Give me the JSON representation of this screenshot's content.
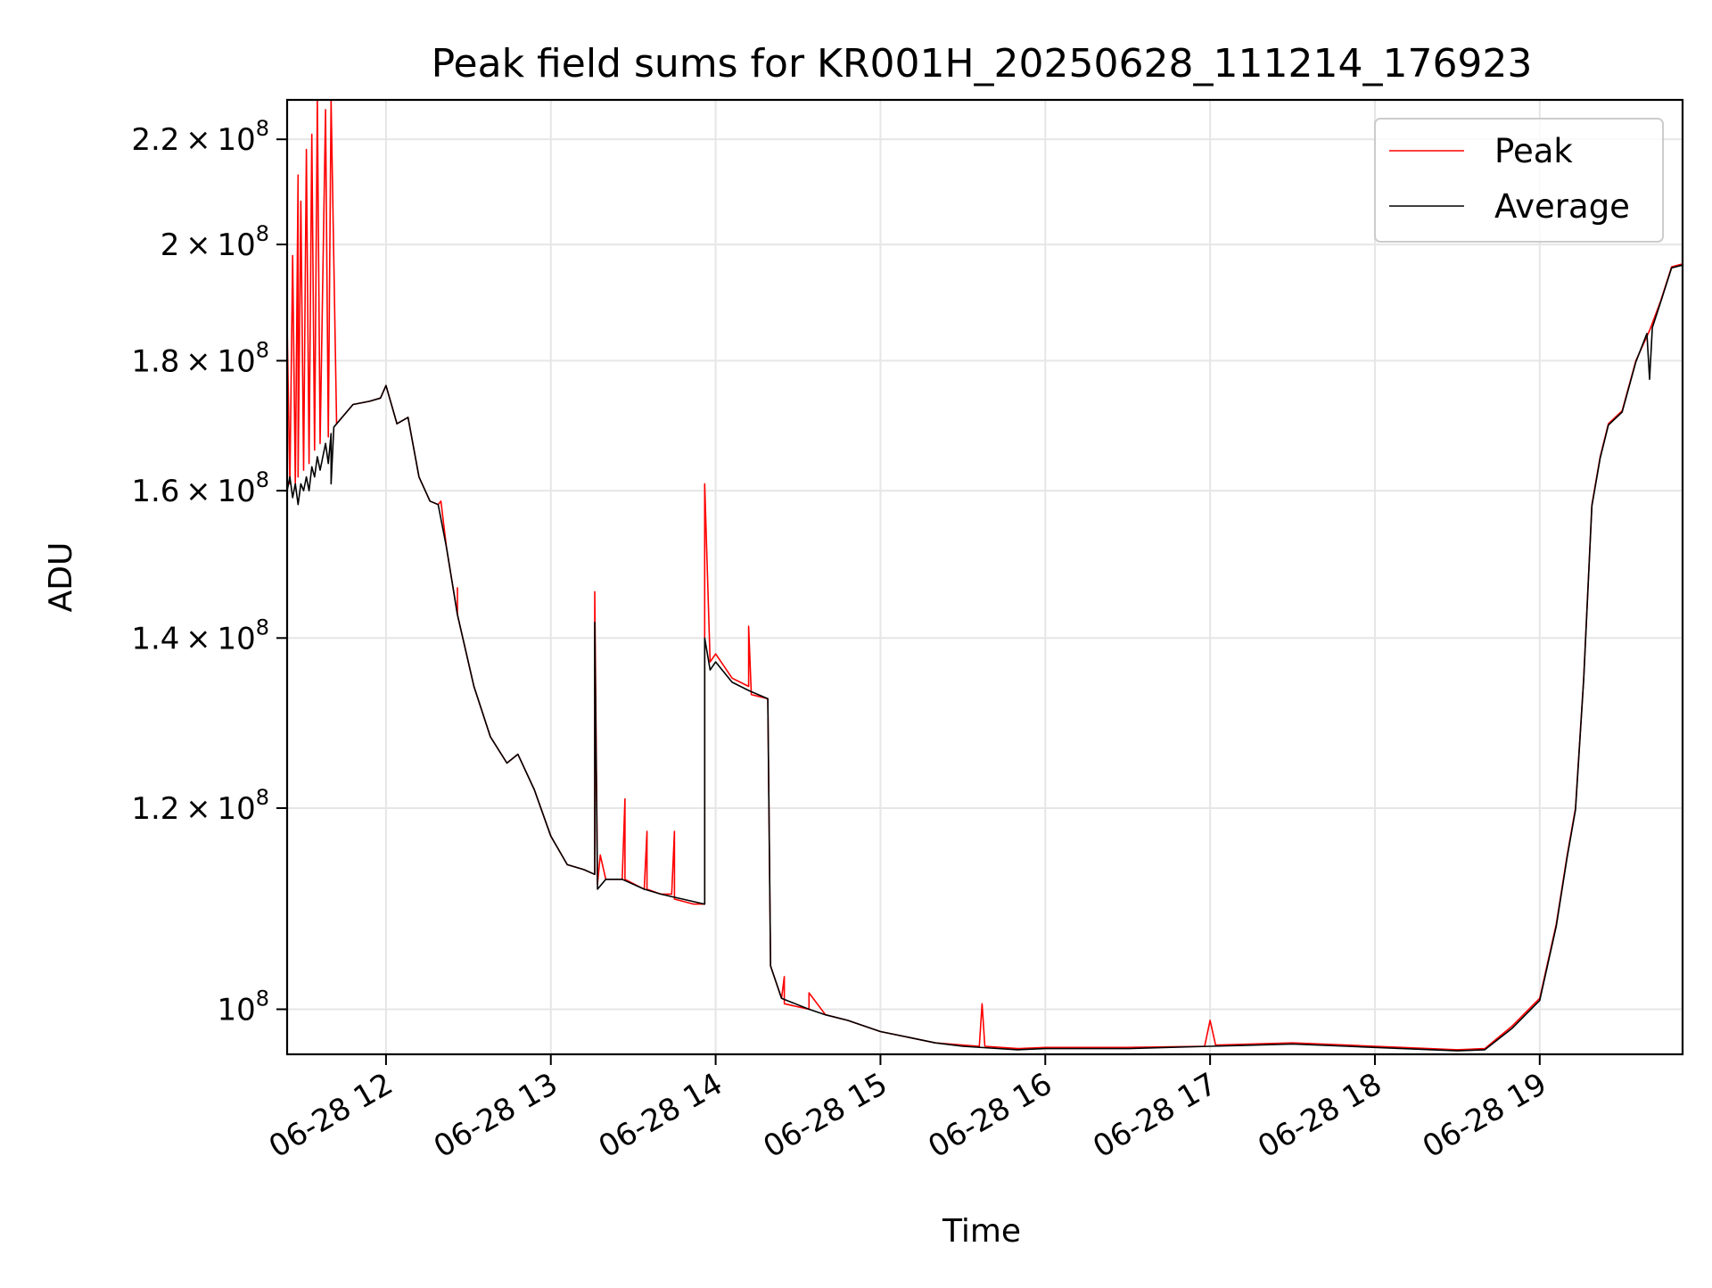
{
  "chart_data": {
    "type": "line",
    "title": "Peak field sums for KR001H_20250628_111214_176923",
    "xlabel": "Time",
    "ylabel": "ADU",
    "yscale": "log",
    "xlim": [
      "2025-06-28 11:24",
      "2025-06-28 19:52"
    ],
    "ylim": [
      96000000,
      228000000
    ],
    "grid": true,
    "legend_position": "top-right",
    "x_ticks": [
      {
        "time": "2025-06-28 12:00",
        "label": "06-28 12"
      },
      {
        "time": "2025-06-28 13:00",
        "label": "06-28 13"
      },
      {
        "time": "2025-06-28 14:00",
        "label": "06-28 14"
      },
      {
        "time": "2025-06-28 15:00",
        "label": "06-28 15"
      },
      {
        "time": "2025-06-28 16:00",
        "label": "06-28 16"
      },
      {
        "time": "2025-06-28 17:00",
        "label": "06-28 17"
      },
      {
        "time": "2025-06-28 18:00",
        "label": "06-28 18"
      },
      {
        "time": "2025-06-28 19:00",
        "label": "06-28 19"
      }
    ],
    "y_ticks": [
      {
        "value": 100000000,
        "mantissa": "",
        "exponent": "8"
      },
      {
        "value": 120000000,
        "mantissa": "1.2",
        "exponent": "8"
      },
      {
        "value": 140000000,
        "mantissa": "1.4",
        "exponent": "8"
      },
      {
        "value": 160000000,
        "mantissa": "1.6",
        "exponent": "8"
      },
      {
        "value": 180000000,
        "mantissa": "1.8",
        "exponent": "8"
      },
      {
        "value": 200000000,
        "mantissa": "2",
        "exponent": "8"
      },
      {
        "value": 220000000,
        "mantissa": "2.2",
        "exponent": "8"
      }
    ],
    "series": [
      {
        "name": "Peak",
        "color": "#ff0000",
        "points": [
          [
            "2025-06-28 11:24",
            162000000
          ],
          [
            "2025-06-28 11:24",
            186000000
          ],
          [
            "2025-06-28 11:25",
            161000000
          ],
          [
            "2025-06-28 11:26",
            198000000
          ],
          [
            "2025-06-28 11:27",
            161000000
          ],
          [
            "2025-06-28 11:28",
            213000000
          ],
          [
            "2025-06-28 11:28",
            162000000
          ],
          [
            "2025-06-28 11:29",
            208000000
          ],
          [
            "2025-06-28 11:30",
            163000000
          ],
          [
            "2025-06-28 11:31",
            218000000
          ],
          [
            "2025-06-28 11:32",
            164000000
          ],
          [
            "2025-06-28 11:33",
            221000000
          ],
          [
            "2025-06-28 11:34",
            166000000
          ],
          [
            "2025-06-28 11:35",
            228000000
          ],
          [
            "2025-06-28 11:36",
            167000000
          ],
          [
            "2025-06-28 11:38",
            226000000
          ],
          [
            "2025-06-28 11:39",
            168000000
          ],
          [
            "2025-06-28 11:40",
            228000000
          ],
          [
            "2025-06-28 11:42",
            170000000
          ],
          [
            "2025-06-28 11:48",
            173000000
          ],
          [
            "2025-06-28 11:54",
            173500000
          ],
          [
            "2025-06-28 11:58",
            174000000
          ],
          [
            "2025-06-28 12:00",
            176000000
          ],
          [
            "2025-06-28 12:04",
            170000000
          ],
          [
            "2025-06-28 12:08",
            171000000
          ],
          [
            "2025-06-28 12:12",
            162000000
          ],
          [
            "2025-06-28 12:16",
            158500000
          ],
          [
            "2025-06-28 12:19",
            158000000
          ],
          [
            "2025-06-28 12:20",
            158500000
          ],
          [
            "2025-06-28 12:22",
            152000000
          ],
          [
            "2025-06-28 12:26",
            143000000
          ],
          [
            "2025-06-28 12:26",
            146500000
          ],
          [
            "2025-06-28 12:26",
            143000000
          ],
          [
            "2025-06-28 12:32",
            134000000
          ],
          [
            "2025-06-28 12:38",
            128000000
          ],
          [
            "2025-06-28 12:44",
            125000000
          ],
          [
            "2025-06-28 12:48",
            126000000
          ],
          [
            "2025-06-28 12:54",
            122000000
          ],
          [
            "2025-06-28 13:00",
            117000000
          ],
          [
            "2025-06-28 13:06",
            114000000
          ],
          [
            "2025-06-28 13:12",
            113500000
          ],
          [
            "2025-06-28 13:16",
            113000000
          ],
          [
            "2025-06-28 13:16",
            146000000
          ],
          [
            "2025-06-28 13:17",
            112000000
          ],
          [
            "2025-06-28 13:18",
            115000000
          ],
          [
            "2025-06-28 13:20",
            112500000
          ],
          [
            "2025-06-28 13:26",
            112500000
          ],
          [
            "2025-06-28 13:27",
            121000000
          ],
          [
            "2025-06-28 13:27",
            112500000
          ],
          [
            "2025-06-28 13:34",
            111500000
          ],
          [
            "2025-06-28 13:35",
            117500000
          ],
          [
            "2025-06-28 13:35",
            111500000
          ],
          [
            "2025-06-28 13:40",
            111000000
          ],
          [
            "2025-06-28 13:44",
            111000000
          ],
          [
            "2025-06-28 13:45",
            117500000
          ],
          [
            "2025-06-28 13:45",
            110500000
          ],
          [
            "2025-06-28 13:52",
            110000000
          ],
          [
            "2025-06-28 13:56",
            110000000
          ],
          [
            "2025-06-28 13:56",
            161000000
          ],
          [
            "2025-06-28 13:58",
            137000000
          ],
          [
            "2025-06-28 14:00",
            138000000
          ],
          [
            "2025-06-28 14:06",
            135000000
          ],
          [
            "2025-06-28 14:12",
            134000000
          ],
          [
            "2025-06-28 14:12",
            141500000
          ],
          [
            "2025-06-28 14:13",
            133000000
          ],
          [
            "2025-06-28 14:19",
            132500000
          ],
          [
            "2025-06-28 14:20",
            104000000
          ],
          [
            "2025-06-28 14:24",
            101000000
          ],
          [
            "2025-06-28 14:25",
            103000000
          ],
          [
            "2025-06-28 14:25",
            100500000
          ],
          [
            "2025-06-28 14:34",
            100000000
          ],
          [
            "2025-06-28 14:34",
            101500000
          ],
          [
            "2025-06-28 14:40",
            99500000
          ],
          [
            "2025-06-28 14:48",
            99000000
          ],
          [
            "2025-06-28 15:00",
            98000000
          ],
          [
            "2025-06-28 15:10",
            97500000
          ],
          [
            "2025-06-28 15:20",
            97000000
          ],
          [
            "2025-06-28 15:30",
            96800000
          ],
          [
            "2025-06-28 15:36",
            96700000
          ],
          [
            "2025-06-28 15:37",
            100500000
          ],
          [
            "2025-06-28 15:38",
            96700000
          ],
          [
            "2025-06-28 15:50",
            96500000
          ],
          [
            "2025-06-28 16:00",
            96600000
          ],
          [
            "2025-06-28 16:30",
            96600000
          ],
          [
            "2025-06-28 16:58",
            96700000
          ],
          [
            "2025-06-28 17:00",
            99000000
          ],
          [
            "2025-06-28 17:02",
            96800000
          ],
          [
            "2025-06-28 17:30",
            97000000
          ],
          [
            "2025-06-28 17:50",
            96800000
          ],
          [
            "2025-06-28 18:10",
            96600000
          ],
          [
            "2025-06-28 18:30",
            96400000
          ],
          [
            "2025-06-28 18:40",
            96500000
          ],
          [
            "2025-06-28 18:50",
            98500000
          ],
          [
            "2025-06-28 19:00",
            101000000
          ],
          [
            "2025-06-28 19:06",
            108000000
          ],
          [
            "2025-06-28 19:10",
            115000000
          ],
          [
            "2025-06-28 19:13",
            120000000
          ],
          [
            "2025-06-28 19:16",
            135000000
          ],
          [
            "2025-06-28 19:19",
            158000000
          ],
          [
            "2025-06-28 19:22",
            165000000
          ],
          [
            "2025-06-28 19:25",
            170000000
          ],
          [
            "2025-06-28 19:30",
            172000000
          ],
          [
            "2025-06-28 19:35",
            180000000
          ],
          [
            "2025-06-28 19:40",
            185000000
          ],
          [
            "2025-06-28 19:44",
            190000000
          ],
          [
            "2025-06-28 19:48",
            196000000
          ],
          [
            "2025-06-28 19:52",
            196500000
          ]
        ]
      },
      {
        "name": "Average",
        "color": "#000000",
        "points": [
          [
            "2025-06-28 11:24",
            160000000
          ],
          [
            "2025-06-28 11:25",
            162000000
          ],
          [
            "2025-06-28 11:26",
            159000000
          ],
          [
            "2025-06-28 11:27",
            161000000
          ],
          [
            "2025-06-28 11:28",
            158000000
          ],
          [
            "2025-06-28 11:29",
            161000000
          ],
          [
            "2025-06-28 11:30",
            160000000
          ],
          [
            "2025-06-28 11:31",
            162000000
          ],
          [
            "2025-06-28 11:32",
            160000000
          ],
          [
            "2025-06-28 11:33",
            163500000
          ],
          [
            "2025-06-28 11:34",
            162000000
          ],
          [
            "2025-06-28 11:35",
            165000000
          ],
          [
            "2025-06-28 11:36",
            163000000
          ],
          [
            "2025-06-28 11:38",
            167000000
          ],
          [
            "2025-06-28 11:39",
            164000000
          ],
          [
            "2025-06-28 11:40",
            168500000
          ],
          [
            "2025-06-28 11:40",
            161000000
          ],
          [
            "2025-06-28 11:41",
            169500000
          ],
          [
            "2025-06-28 11:48",
            173000000
          ],
          [
            "2025-06-28 11:54",
            173500000
          ],
          [
            "2025-06-28 11:58",
            174000000
          ],
          [
            "2025-06-28 12:00",
            176000000
          ],
          [
            "2025-06-28 12:04",
            170000000
          ],
          [
            "2025-06-28 12:08",
            171000000
          ],
          [
            "2025-06-28 12:12",
            162000000
          ],
          [
            "2025-06-28 12:16",
            158500000
          ],
          [
            "2025-06-28 12:19",
            158000000
          ],
          [
            "2025-06-28 12:22",
            152000000
          ],
          [
            "2025-06-28 12:26",
            143000000
          ],
          [
            "2025-06-28 12:32",
            134000000
          ],
          [
            "2025-06-28 12:38",
            128000000
          ],
          [
            "2025-06-28 12:44",
            125000000
          ],
          [
            "2025-06-28 12:48",
            126000000
          ],
          [
            "2025-06-28 12:54",
            122000000
          ],
          [
            "2025-06-28 13:00",
            117000000
          ],
          [
            "2025-06-28 13:06",
            114000000
          ],
          [
            "2025-06-28 13:12",
            113500000
          ],
          [
            "2025-06-28 13:16",
            113000000
          ],
          [
            "2025-06-28 13:16",
            142000000
          ],
          [
            "2025-06-28 13:17",
            111500000
          ],
          [
            "2025-06-28 13:20",
            112500000
          ],
          [
            "2025-06-28 13:26",
            112500000
          ],
          [
            "2025-06-28 13:34",
            111500000
          ],
          [
            "2025-06-28 13:40",
            111000000
          ],
          [
            "2025-06-28 13:48",
            110500000
          ],
          [
            "2025-06-28 13:56",
            110000000
          ],
          [
            "2025-06-28 13:56",
            140000000
          ],
          [
            "2025-06-28 13:58",
            136000000
          ],
          [
            "2025-06-28 14:00",
            137000000
          ],
          [
            "2025-06-28 14:06",
            134500000
          ],
          [
            "2025-06-28 14:12",
            133500000
          ],
          [
            "2025-06-28 14:19",
            132500000
          ],
          [
            "2025-06-28 14:20",
            104000000
          ],
          [
            "2025-06-28 14:24",
            101000000
          ],
          [
            "2025-06-28 14:34",
            100000000
          ],
          [
            "2025-06-28 14:40",
            99500000
          ],
          [
            "2025-06-28 14:48",
            99000000
          ],
          [
            "2025-06-28 15:00",
            98000000
          ],
          [
            "2025-06-28 15:10",
            97500000
          ],
          [
            "2025-06-28 15:20",
            97000000
          ],
          [
            "2025-06-28 15:30",
            96700000
          ],
          [
            "2025-06-28 15:50",
            96400000
          ],
          [
            "2025-06-28 16:00",
            96500000
          ],
          [
            "2025-06-28 16:30",
            96500000
          ],
          [
            "2025-06-28 17:00",
            96700000
          ],
          [
            "2025-06-28 17:30",
            96900000
          ],
          [
            "2025-06-28 17:50",
            96700000
          ],
          [
            "2025-06-28 18:10",
            96500000
          ],
          [
            "2025-06-28 18:30",
            96300000
          ],
          [
            "2025-06-28 18:40",
            96400000
          ],
          [
            "2025-06-28 18:50",
            98300000
          ],
          [
            "2025-06-28 19:00",
            100800000
          ],
          [
            "2025-06-28 19:06",
            107800000
          ],
          [
            "2025-06-28 19:10",
            114800000
          ],
          [
            "2025-06-28 19:13",
            119800000
          ],
          [
            "2025-06-28 19:16",
            134800000
          ],
          [
            "2025-06-28 19:19",
            157800000
          ],
          [
            "2025-06-28 19:22",
            164800000
          ],
          [
            "2025-06-28 19:25",
            169800000
          ],
          [
            "2025-06-28 19:30",
            171800000
          ],
          [
            "2025-06-28 19:35",
            179800000
          ],
          [
            "2025-06-28 19:39",
            184500000
          ],
          [
            "2025-06-28 19:40",
            177000000
          ],
          [
            "2025-06-28 19:41",
            185500000
          ],
          [
            "2025-06-28 19:44",
            189800000
          ],
          [
            "2025-06-28 19:48",
            195800000
          ],
          [
            "2025-06-28 19:52",
            196300000
          ]
        ]
      }
    ]
  }
}
